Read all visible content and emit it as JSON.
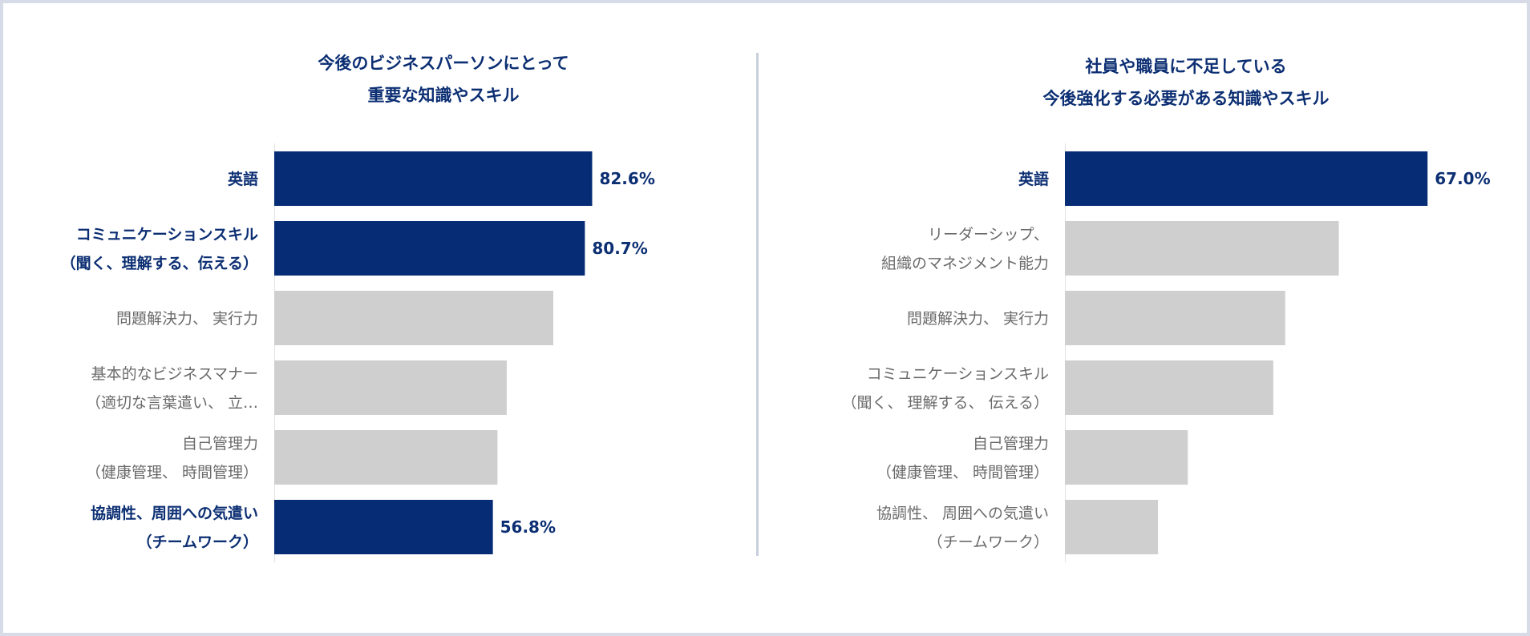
{
  "chart_data": [
    {
      "type": "bar",
      "orientation": "horizontal",
      "title_lines": [
        "今後のビジネスパーソンにとって",
        "重要な知識やスキル"
      ],
      "categories": [
        [
          "英語"
        ],
        [
          "コミュニケーションスキル",
          "（聞く、理解する、伝える）"
        ],
        [
          "問題解決力、 実行力"
        ],
        [
          "基本的なビジネスマナー",
          "（適切な言葉遣い、 立…"
        ],
        [
          "自己管理力",
          "（健康管理、 時間管理）"
        ],
        [
          "協調性、周囲への気遣い",
          "（チームワーク）"
        ]
      ],
      "values": [
        82.6,
        80.7,
        72.5,
        60.4,
        58.0,
        56.8
      ],
      "value_labels": [
        "82.6%",
        "80.7%",
        "",
        "",
        "",
        "56.8%"
      ],
      "highlighted": [
        true,
        true,
        false,
        false,
        false,
        true
      ],
      "xlim": [
        0,
        100
      ],
      "grid": false,
      "legend": "none",
      "colors": {
        "highlight": "#052c74",
        "normal": "#d0cfcf"
      }
    },
    {
      "type": "bar",
      "orientation": "horizontal",
      "title_lines": [
        "社員や職員に不足している",
        "今後強化する必要がある知識やスキル"
      ],
      "categories": [
        [
          "英語"
        ],
        [
          "リーダーシップ、",
          "組織のマネジメント能力"
        ],
        [
          "問題解決力、 実行力"
        ],
        [
          "コミュニケーションスキル",
          "（聞く、 理解する、 伝える）"
        ],
        [
          "自己管理力",
          "（健康管理、 時間管理）"
        ],
        [
          "協調性、 周囲への気遣い",
          "（チームワーク）"
        ]
      ],
      "values": [
        67.0,
        50.6,
        40.7,
        38.5,
        22.7,
        17.2
      ],
      "value_labels": [
        "67.0%",
        "",
        "",
        "",
        "",
        ""
      ],
      "highlighted": [
        true,
        false,
        false,
        false,
        false,
        false
      ],
      "xlim": [
        0,
        100
      ],
      "grid": false,
      "legend": "none",
      "colors": {
        "highlight": "#052c74",
        "normal": "#d0cfcf"
      }
    }
  ]
}
